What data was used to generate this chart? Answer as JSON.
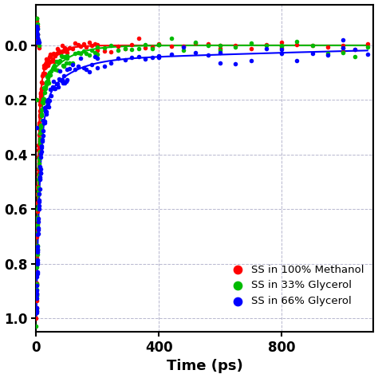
{
  "xlabel": "Time (ps)",
  "ylabel": "",
  "xlim": [
    0,
    1100
  ],
  "ylim": [
    -1.05,
    0.15
  ],
  "yticks": [
    0.0,
    -0.2,
    -0.4,
    -0.6,
    -0.8,
    -1.0
  ],
  "ytick_labels": [
    "0.0",
    "0.2",
    "0.4",
    "0.6",
    "0.8",
    "1.0"
  ],
  "xticks": [
    0,
    400,
    800
  ],
  "xtick_labels": [
    "0",
    "400",
    "800"
  ],
  "legend": [
    {
      "label": "SS in 100% Methanol",
      "color": "#ff0000"
    },
    {
      "label": "SS in 33% Glycerol",
      "color": "#00bb00"
    },
    {
      "label": "SS in 66% Glycerol",
      "color": "#0000ff"
    }
  ],
  "colors": {
    "red": "#ff0000",
    "green": "#00bb00",
    "blue": "#0000ff"
  },
  "grid_color": "#9999bb",
  "scatter_size": 16,
  "line_width": 1.5
}
